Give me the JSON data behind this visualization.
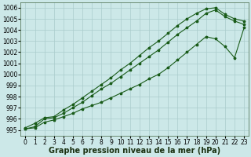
{
  "xlabel": "Graphe pression niveau de la mer (hPa)",
  "bg_color": "#cce8e8",
  "grid_color": "#aacccc",
  "line_color": "#1a5c1a",
  "ylim": [
    994.5,
    1006.5
  ],
  "xlim": [
    -0.5,
    23.5
  ],
  "yticks": [
    995,
    996,
    997,
    998,
    999,
    1000,
    1001,
    1002,
    1003,
    1004,
    1005,
    1006
  ],
  "xticks": [
    0,
    1,
    2,
    3,
    4,
    5,
    6,
    7,
    8,
    9,
    10,
    11,
    12,
    13,
    14,
    15,
    16,
    17,
    18,
    19,
    20,
    21,
    22,
    23
  ],
  "line1_x": [
    0,
    1,
    2,
    3,
    4,
    5,
    6,
    7,
    8,
    9,
    10,
    11,
    12,
    13,
    14,
    15,
    16,
    17,
    18,
    19,
    20,
    21,
    22,
    23
  ],
  "line1_y": [
    995.1,
    995.3,
    996.0,
    996.1,
    996.5,
    997.0,
    997.5,
    998.1,
    998.7,
    999.2,
    999.8,
    1000.4,
    1001.0,
    1001.6,
    1002.2,
    1002.9,
    1003.6,
    1004.2,
    1004.8,
    1005.5,
    1005.8,
    1005.2,
    1004.8,
    1004.5
  ],
  "line2_x": [
    0,
    1,
    2,
    3,
    4,
    5,
    6,
    7,
    8,
    9,
    10,
    11,
    12,
    13,
    14,
    15,
    16,
    17,
    18,
    19,
    20,
    21,
    22,
    23
  ],
  "line2_y": [
    995.2,
    995.6,
    996.1,
    996.2,
    996.8,
    997.3,
    997.9,
    998.5,
    999.1,
    999.7,
    1000.4,
    1001.0,
    1001.7,
    1002.4,
    1003.0,
    1003.7,
    1004.4,
    1005.0,
    1005.5,
    1005.9,
    1006.0,
    1005.4,
    1005.0,
    1004.8
  ],
  "line3_x": [
    0,
    1,
    2,
    3,
    4,
    5,
    6,
    7,
    8,
    9,
    10,
    11,
    12,
    13,
    14,
    15,
    16,
    17,
    18,
    19,
    20,
    21,
    22,
    23
  ],
  "line3_y": [
    995.1,
    995.2,
    995.7,
    995.9,
    996.2,
    996.5,
    996.9,
    997.2,
    997.5,
    997.9,
    998.3,
    998.7,
    999.1,
    999.6,
    1000.0,
    1000.6,
    1001.3,
    1002.0,
    1002.7,
    1003.4,
    1003.2,
    1002.5,
    1001.5,
    1004.2
  ],
  "xlabel_fontsize": 7,
  "tick_fontsize": 5.5
}
